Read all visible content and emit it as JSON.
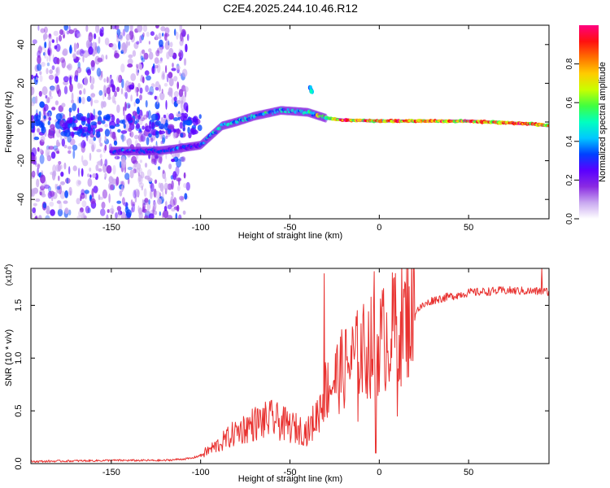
{
  "title": "C2E4.2025.244.10.46.R12",
  "chart_data": [
    {
      "type": "heatmap",
      "name": "spectrogram",
      "xlabel": "Height of straight line (km)",
      "ylabel": "Frequency (Hz)",
      "xlim": [
        -195,
        95
      ],
      "ylim": [
        -50,
        50
      ],
      "xticks": [
        -150,
        -100,
        -50,
        0,
        50
      ],
      "yticks": [
        -40,
        -20,
        0,
        20,
        40
      ],
      "ridge": [
        {
          "x": -150,
          "y": -15
        },
        {
          "x": -125,
          "y": -15
        },
        {
          "x": -115,
          "y": -14
        },
        {
          "x": -100,
          "y": -12
        },
        {
          "x": -88,
          "y": -2
        },
        {
          "x": -80,
          "y": 0
        },
        {
          "x": -70,
          "y": 3
        },
        {
          "x": -55,
          "y": 6
        },
        {
          "x": -40,
          "y": 5
        },
        {
          "x": -30,
          "y": 2
        },
        {
          "x": -20,
          "y": 1
        },
        {
          "x": 0,
          "y": 0.5
        },
        {
          "x": 50,
          "y": 0.5
        },
        {
          "x": 85,
          "y": -1
        },
        {
          "x": 95,
          "y": -2
        }
      ],
      "colorbar": {
        "label": "Normalized spectral amplitude",
        "ticks": [
          0.0,
          0.2,
          0.4,
          0.6,
          0.8
        ],
        "tick_labels": [
          "0.0",
          "0.2",
          "0.4",
          "0.6",
          "0.8"
        ],
        "colors": [
          "#ffffff",
          "#c9a8f0",
          "#8a2be2",
          "#5a00ff",
          "#0040ff",
          "#00c8ff",
          "#00ffc0",
          "#40ff40",
          "#c8ff00",
          "#ffcc00",
          "#ff7000",
          "#ff1010",
          "#ff0080"
        ]
      }
    },
    {
      "type": "line",
      "name": "snr",
      "xlabel": "Height of straight line (km)",
      "ylabel": "SNR (10 * v/v)",
      "scale_note": "(x10",
      "scale_exp": "4",
      "xlim": [
        -195,
        95
      ],
      "ylim": [
        0,
        1.85
      ],
      "xticks": [
        -150,
        -100,
        -50,
        0,
        50
      ],
      "yticks": [
        0.0,
        0.5,
        1.0,
        1.5
      ],
      "ytick_labels": [
        "0.0",
        "0.5",
        "1.0",
        "1.5"
      ],
      "color": "#e8312f",
      "envelope": [
        {
          "x": -195,
          "y": 0.02
        },
        {
          "x": -150,
          "y": 0.03
        },
        {
          "x": -120,
          "y": 0.03
        },
        {
          "x": -105,
          "y": 0.05
        },
        {
          "x": -100,
          "y": 0.08
        },
        {
          "x": -90,
          "y": 0.18
        },
        {
          "x": -80,
          "y": 0.3
        },
        {
          "x": -70,
          "y": 0.38
        },
        {
          "x": -60,
          "y": 0.42
        },
        {
          "x": -50,
          "y": 0.35
        },
        {
          "x": -40,
          "y": 0.3
        },
        {
          "x": -35,
          "y": 0.45
        },
        {
          "x": -30,
          "y": 0.7
        },
        {
          "x": -20,
          "y": 0.9
        },
        {
          "x": -10,
          "y": 1.05
        },
        {
          "x": 0,
          "y": 1.15
        },
        {
          "x": 10,
          "y": 1.3
        },
        {
          "x": 20,
          "y": 1.45
        },
        {
          "x": 30,
          "y": 1.55
        },
        {
          "x": 50,
          "y": 1.62
        },
        {
          "x": 70,
          "y": 1.64
        },
        {
          "x": 95,
          "y": 1.63
        }
      ],
      "spikes": [
        {
          "x": -31,
          "y": 1.8
        },
        {
          "x": -3,
          "y": 1.82
        },
        {
          "x": 8,
          "y": 1.75
        },
        {
          "x": 91,
          "y": 1.85
        },
        {
          "x": -2,
          "y": 0.1
        },
        {
          "x": 10,
          "y": 0.45
        },
        {
          "x": -12,
          "y": 0.4
        }
      ]
    }
  ]
}
